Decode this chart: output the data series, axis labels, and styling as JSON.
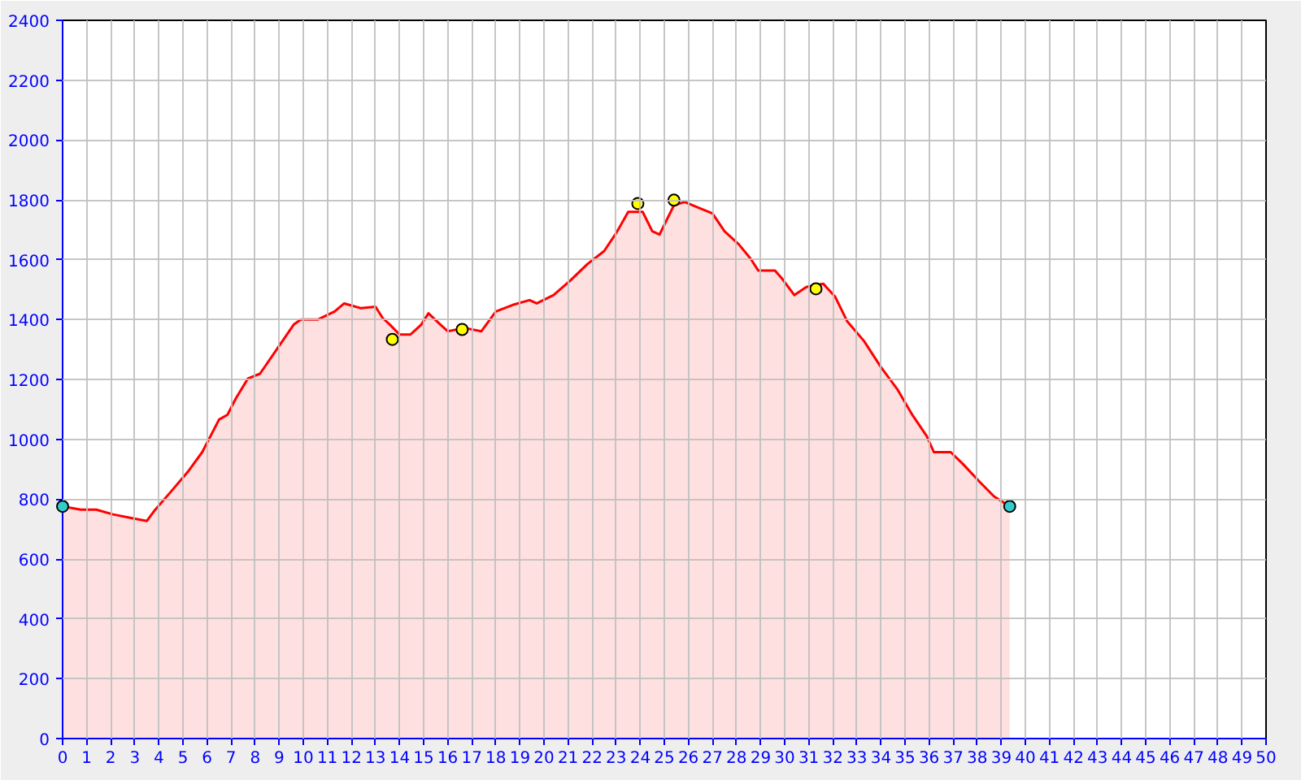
{
  "chart_data": {
    "type": "area",
    "xlim": [
      0,
      50
    ],
    "ylim": [
      0,
      2400
    ],
    "xticks": [
      0,
      1,
      2,
      3,
      4,
      5,
      6,
      7,
      8,
      9,
      10,
      11,
      12,
      13,
      14,
      15,
      16,
      17,
      18,
      19,
      20,
      21,
      22,
      23,
      24,
      25,
      26,
      27,
      28,
      29,
      30,
      31,
      32,
      33,
      34,
      35,
      36,
      37,
      38,
      39,
      40,
      41,
      42,
      43,
      44,
      45,
      46,
      47,
      48,
      49,
      50
    ],
    "yticks": [
      0,
      200,
      400,
      600,
      800,
      1000,
      1200,
      1400,
      1600,
      1800,
      2000,
      2200,
      2400
    ],
    "grid": true,
    "series": [
      {
        "color": "#ff0000",
        "x": [
          0,
          0.75,
          1.4,
          2.1,
          2.8,
          3.5,
          3.8,
          4.5,
          5.2,
          5.8,
          6.5,
          6.85,
          7.2,
          7.7,
          8.2,
          8.9,
          9.6,
          9.9,
          10.6,
          11.3,
          11.7,
          12.4,
          13.0,
          13.3,
          13.6,
          14.0,
          14.45,
          14.9,
          15.2,
          15.7,
          16.0,
          16.7,
          17.4,
          18.0,
          18.7,
          19.4,
          19.7,
          20.4,
          21.1,
          21.8,
          22.5,
          23.0,
          23.5,
          24.1,
          24.5,
          24.8,
          25.4,
          25.85,
          26.5,
          27.0,
          27.5,
          28.1,
          28.6,
          28.9,
          29.6,
          29.9,
          30.4,
          30.9,
          31.6,
          32.1,
          32.6,
          33.3,
          34.0,
          34.7,
          35.3,
          35.9,
          36.2,
          36.6,
          36.9,
          37.4,
          38.1,
          38.7,
          39.35
        ],
        "values": [
          776,
          765,
          765,
          749,
          738,
          727,
          760,
          825,
          891,
          957,
          1066,
          1082,
          1137,
          1203,
          1219,
          1301,
          1383,
          1400,
          1400,
          1427,
          1454,
          1438,
          1443,
          1405,
          1383,
          1350,
          1350,
          1383,
          1421,
          1383,
          1361,
          1372,
          1361,
          1427,
          1449,
          1465,
          1454,
          1482,
          1531,
          1585,
          1629,
          1689,
          1760,
          1760,
          1695,
          1684,
          1782,
          1793,
          1771,
          1755,
          1695,
          1651,
          1602,
          1564,
          1564,
          1536,
          1482,
          1509,
          1520,
          1476,
          1394,
          1328,
          1241,
          1165,
          1082,
          1011,
          957,
          957,
          957,
          918,
          858,
          809,
          776
        ]
      },
      {
        "type": "scatter",
        "marker": "circle",
        "color": "#ffff00",
        "x": [
          13.7,
          16.6,
          23.9,
          25.4,
          31.3
        ],
        "values": [
          1334,
          1367,
          1788,
          1799,
          1503
        ]
      },
      {
        "type": "scatter",
        "marker": "circle",
        "color": "#33cccc",
        "x": [
          0,
          39.35
        ],
        "values": [
          776,
          776
        ]
      }
    ]
  }
}
